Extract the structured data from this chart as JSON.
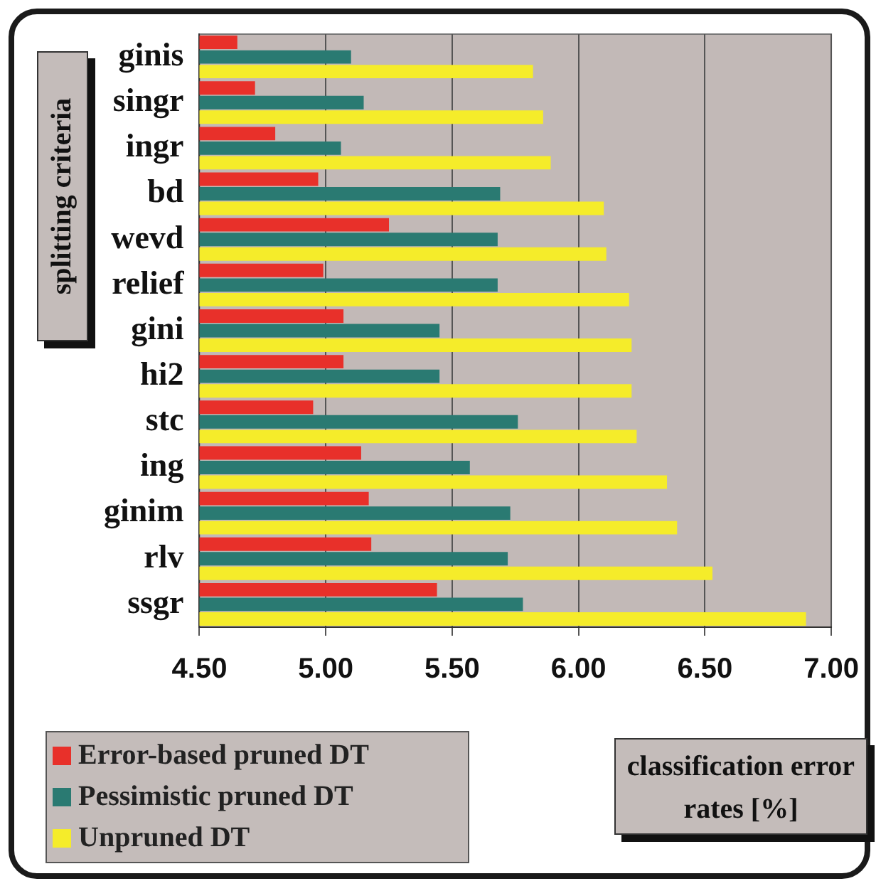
{
  "chart_data": {
    "type": "bar",
    "orientation": "horizontal",
    "xlabel": "classification error rates [%]",
    "ylabel": "splitting criteria",
    "categories": [
      "ginis",
      "singr",
      "ingr",
      "bd",
      "wevd",
      "relief",
      "gini",
      "hi2",
      "stc",
      "ing",
      "ginim",
      "rlv",
      "ssgr"
    ],
    "series": [
      {
        "name": "Error-based pruned DT",
        "color": "#e8302a",
        "values": [
          4.65,
          4.72,
          4.8,
          4.97,
          5.25,
          4.99,
          5.07,
          5.07,
          4.95,
          5.14,
          5.17,
          5.18,
          5.44
        ]
      },
      {
        "name": "Pessimistic pruned DT",
        "color": "#2a7a72",
        "values": [
          5.1,
          5.15,
          5.06,
          5.69,
          5.68,
          5.68,
          5.45,
          5.45,
          5.76,
          5.57,
          5.73,
          5.72,
          5.78
        ]
      },
      {
        "name": "Unpruned DT",
        "color": "#f5ec2a",
        "values": [
          5.82,
          5.86,
          5.89,
          6.1,
          6.11,
          6.2,
          6.21,
          6.21,
          6.23,
          6.35,
          6.39,
          6.53,
          6.9
        ]
      }
    ],
    "xlim": [
      4.5,
      7
    ],
    "xticks": [
      {
        "value": 4.5,
        "label": "4.50"
      },
      {
        "value": 5,
        "label": "5.00"
      },
      {
        "value": 5.5,
        "label": "5.50"
      },
      {
        "value": 6,
        "label": "6.00"
      },
      {
        "value": 6.5,
        "label": "6.50"
      },
      {
        "value": 7,
        "label": "7.00"
      }
    ],
    "grid": "x",
    "legend": "bottom left"
  }
}
